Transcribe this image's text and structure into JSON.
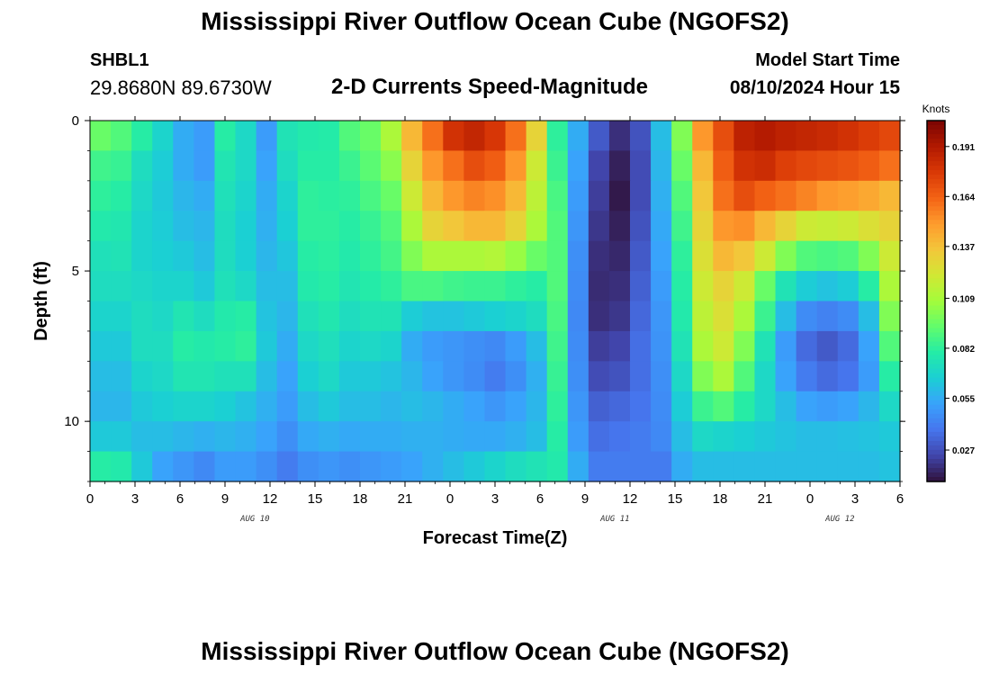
{
  "header": {
    "title": "Mississippi River Outflow Ocean Cube (NGOFS2)",
    "station_id": "SHBL1",
    "station_coords": "29.8680N  89.6730W",
    "subtitle": "2-D Currents Speed-Magnitude",
    "model_start_label": "Model Start Time",
    "model_start_value": "08/10/2024 Hour 15"
  },
  "footer": {
    "title": "Mississippi River Outflow Ocean Cube (NGOFS2)"
  },
  "chart_data": {
    "type": "heatmap",
    "title": "2-D Currents Speed-Magnitude",
    "xlabel": "Forecast Time(Z)",
    "ylabel": "Depth (ft)",
    "x_tick_labels": [
      "0",
      "3",
      "6",
      "9",
      "12",
      "15",
      "18",
      "21",
      "0",
      "3",
      "6",
      "9",
      "12",
      "15",
      "18",
      "21",
      "0",
      "3",
      "6"
    ],
    "x_date_labels": [
      {
        "label": "AUG 10",
        "x": 11
      },
      {
        "label": "AUG 11",
        "x": 35
      },
      {
        "label": "AUG 12",
        "x": 50
      }
    ],
    "x_range": [
      0,
      54
    ],
    "x_unit": "hours since 00Z Aug 10",
    "y_tick_labels": [
      "0",
      "5",
      "10"
    ],
    "y_ticks": [
      0,
      5,
      10
    ],
    "ylim": [
      0,
      12
    ],
    "y_inverted": true,
    "colorbar": {
      "unit": "Knots",
      "tick_labels": [
        "0.191",
        "0.164",
        "0.137",
        "0.109",
        "0.082",
        "0.055",
        "0.027"
      ],
      "tick_values": [
        0.191,
        0.164,
        0.137,
        0.109,
        0.082,
        0.055,
        0.027
      ],
      "range": [
        0.01,
        0.205
      ],
      "colormap": [
        "#30123b",
        "#4145ab",
        "#4675ed",
        "#39a2fc",
        "#1bcfd4",
        "#24eca6",
        "#61fc6c",
        "#a4fc3b",
        "#d1e834",
        "#f3c63a",
        "#fe9b2d",
        "#f36315",
        "#d93806",
        "#b11901",
        "#7a0402"
      ]
    },
    "depth_levels_ft": [
      0.5,
      1.5,
      2.5,
      3.5,
      4.5,
      5.5,
      6.5,
      7.5,
      8.5,
      9.5,
      10.5,
      11.5
    ],
    "speed_description": "current speed (knots) by forecast hour (0-54) and depth (0-12 ft); values read from the heatmap colour",
    "speed_knots_by_depth": [
      [
        0.095,
        0.09,
        0.08,
        0.068,
        0.055,
        0.05,
        0.08,
        0.07,
        0.05,
        0.075,
        0.078,
        0.079,
        0.09,
        0.095,
        0.11,
        0.14,
        0.16,
        0.18,
        0.185,
        0.178,
        0.16,
        0.13,
        0.082,
        0.055,
        0.03,
        0.018,
        0.028,
        0.06,
        0.1,
        0.15,
        0.17,
        0.187,
        0.19,
        0.187,
        0.185,
        0.183,
        0.18,
        0.176,
        0.172
      ],
      [
        0.086,
        0.084,
        0.072,
        0.065,
        0.055,
        0.05,
        0.076,
        0.07,
        0.052,
        0.072,
        0.08,
        0.08,
        0.085,
        0.092,
        0.102,
        0.13,
        0.15,
        0.16,
        0.17,
        0.165,
        0.15,
        0.12,
        0.085,
        0.052,
        0.024,
        0.014,
        0.026,
        0.058,
        0.095,
        0.14,
        0.165,
        0.18,
        0.182,
        0.175,
        0.172,
        0.17,
        0.168,
        0.165,
        0.16
      ],
      [
        0.082,
        0.08,
        0.07,
        0.064,
        0.058,
        0.055,
        0.074,
        0.068,
        0.055,
        0.068,
        0.082,
        0.081,
        0.082,
        0.088,
        0.095,
        0.12,
        0.14,
        0.15,
        0.155,
        0.152,
        0.14,
        0.115,
        0.088,
        0.05,
        0.022,
        0.012,
        0.026,
        0.056,
        0.09,
        0.135,
        0.16,
        0.17,
        0.164,
        0.16,
        0.155,
        0.15,
        0.148,
        0.145,
        0.14
      ],
      [
        0.078,
        0.077,
        0.068,
        0.065,
        0.06,
        0.058,
        0.072,
        0.066,
        0.056,
        0.066,
        0.082,
        0.082,
        0.08,
        0.084,
        0.09,
        0.11,
        0.13,
        0.135,
        0.14,
        0.14,
        0.13,
        0.11,
        0.09,
        0.048,
        0.02,
        0.014,
        0.028,
        0.054,
        0.086,
        0.13,
        0.15,
        0.152,
        0.14,
        0.13,
        0.12,
        0.118,
        0.12,
        0.125,
        0.13
      ],
      [
        0.074,
        0.075,
        0.068,
        0.066,
        0.064,
        0.06,
        0.072,
        0.066,
        0.058,
        0.063,
        0.08,
        0.081,
        0.078,
        0.082,
        0.087,
        0.1,
        0.11,
        0.11,
        0.11,
        0.112,
        0.105,
        0.095,
        0.09,
        0.046,
        0.018,
        0.016,
        0.03,
        0.052,
        0.082,
        0.125,
        0.14,
        0.135,
        0.12,
        0.1,
        0.09,
        0.088,
        0.09,
        0.1,
        0.12
      ],
      [
        0.072,
        0.072,
        0.07,
        0.068,
        0.068,
        0.064,
        0.074,
        0.07,
        0.06,
        0.06,
        0.078,
        0.08,
        0.076,
        0.079,
        0.082,
        0.088,
        0.088,
        0.086,
        0.085,
        0.085,
        0.082,
        0.08,
        0.09,
        0.045,
        0.017,
        0.018,
        0.032,
        0.05,
        0.08,
        0.12,
        0.13,
        0.12,
        0.095,
        0.075,
        0.065,
        0.062,
        0.065,
        0.08,
        0.11
      ],
      [
        0.068,
        0.068,
        0.072,
        0.07,
        0.076,
        0.072,
        0.078,
        0.08,
        0.062,
        0.058,
        0.074,
        0.077,
        0.072,
        0.075,
        0.075,
        0.065,
        0.062,
        0.062,
        0.064,
        0.066,
        0.068,
        0.072,
        0.088,
        0.044,
        0.018,
        0.02,
        0.034,
        0.048,
        0.078,
        0.115,
        0.125,
        0.11,
        0.085,
        0.06,
        0.045,
        0.042,
        0.045,
        0.06,
        0.1
      ],
      [
        0.064,
        0.064,
        0.072,
        0.072,
        0.08,
        0.078,
        0.08,
        0.082,
        0.064,
        0.055,
        0.07,
        0.073,
        0.068,
        0.07,
        0.068,
        0.055,
        0.05,
        0.048,
        0.046,
        0.044,
        0.05,
        0.06,
        0.086,
        0.045,
        0.022,
        0.024,
        0.036,
        0.047,
        0.075,
        0.11,
        0.12,
        0.1,
        0.075,
        0.05,
        0.035,
        0.03,
        0.035,
        0.052,
        0.09
      ],
      [
        0.06,
        0.06,
        0.068,
        0.07,
        0.076,
        0.076,
        0.074,
        0.074,
        0.06,
        0.052,
        0.066,
        0.07,
        0.064,
        0.064,
        0.062,
        0.058,
        0.052,
        0.048,
        0.045,
        0.04,
        0.046,
        0.056,
        0.084,
        0.046,
        0.026,
        0.028,
        0.036,
        0.046,
        0.07,
        0.1,
        0.11,
        0.09,
        0.07,
        0.052,
        0.04,
        0.035,
        0.038,
        0.05,
        0.08
      ],
      [
        0.058,
        0.058,
        0.064,
        0.066,
        0.068,
        0.068,
        0.066,
        0.062,
        0.056,
        0.05,
        0.06,
        0.064,
        0.06,
        0.06,
        0.058,
        0.06,
        0.058,
        0.055,
        0.052,
        0.048,
        0.052,
        0.058,
        0.082,
        0.048,
        0.032,
        0.034,
        0.038,
        0.045,
        0.065,
        0.085,
        0.09,
        0.08,
        0.07,
        0.06,
        0.052,
        0.05,
        0.052,
        0.058,
        0.07
      ],
      [
        0.064,
        0.064,
        0.06,
        0.06,
        0.058,
        0.056,
        0.058,
        0.056,
        0.052,
        0.046,
        0.054,
        0.056,
        0.054,
        0.055,
        0.055,
        0.056,
        0.056,
        0.055,
        0.054,
        0.054,
        0.056,
        0.06,
        0.08,
        0.05,
        0.036,
        0.038,
        0.04,
        0.044,
        0.06,
        0.07,
        0.068,
        0.066,
        0.064,
        0.062,
        0.06,
        0.06,
        0.061,
        0.062,
        0.064
      ],
      [
        0.08,
        0.078,
        0.064,
        0.052,
        0.048,
        0.044,
        0.05,
        0.05,
        0.046,
        0.04,
        0.046,
        0.048,
        0.046,
        0.048,
        0.05,
        0.052,
        0.056,
        0.06,
        0.064,
        0.068,
        0.072,
        0.075,
        0.078,
        0.055,
        0.04,
        0.04,
        0.04,
        0.04,
        0.055,
        0.06,
        0.06,
        0.06,
        0.06,
        0.06,
        0.06,
        0.06,
        0.06,
        0.06,
        0.062
      ]
    ]
  }
}
